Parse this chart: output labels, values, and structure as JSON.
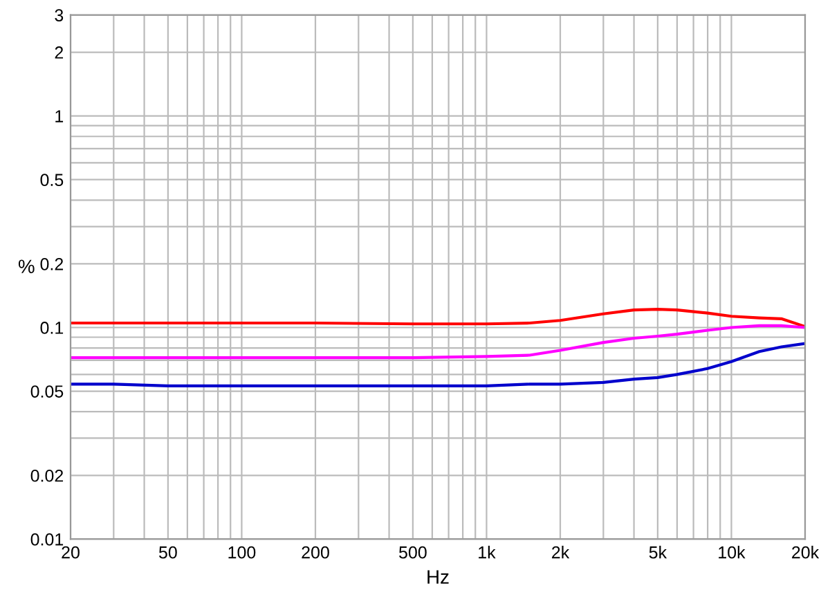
{
  "chart_data": {
    "type": "line",
    "xlabel": "Hz",
    "ylabel": "%",
    "log": "xy",
    "grid": true,
    "marker": "none",
    "line_style": "solid",
    "xlim": [
      20,
      20000
    ],
    "ylim": [
      0.01,
      3
    ],
    "xticks": [
      20,
      {
        "value": 30,
        "label": null
      },
      {
        "value": 40,
        "label": null
      },
      50,
      {
        "value": 60,
        "label": null
      },
      {
        "value": 70,
        "label": null
      },
      {
        "value": 80,
        "label": null
      },
      {
        "value": 90,
        "label": null
      },
      100,
      200,
      {
        "value": 300,
        "label": null
      },
      {
        "value": 400,
        "label": null
      },
      500,
      {
        "value": 600,
        "label": null
      },
      {
        "value": 700,
        "label": null
      },
      {
        "value": 800,
        "label": null
      },
      {
        "value": 900,
        "label": null
      },
      {
        "value": 1000,
        "label": "1k"
      },
      {
        "value": 2000,
        "label": "2k"
      },
      {
        "value": 3000,
        "label": null
      },
      {
        "value": 4000,
        "label": null
      },
      {
        "value": 5000,
        "label": "5k"
      },
      {
        "value": 6000,
        "label": null
      },
      {
        "value": 7000,
        "label": null
      },
      {
        "value": 8000,
        "label": null
      },
      {
        "value": 9000,
        "label": null
      },
      {
        "value": 10000,
        "label": "10k"
      },
      {
        "value": 20000,
        "label": "20k"
      }
    ],
    "yticks": [
      0.01,
      0.02,
      {
        "value": 0.03,
        "label": null
      },
      {
        "value": 0.04,
        "label": null
      },
      0.05,
      {
        "value": 0.06,
        "label": null
      },
      {
        "value": 0.07,
        "label": null
      },
      {
        "value": 0.08,
        "label": null
      },
      {
        "value": 0.09,
        "label": null
      },
      0.1,
      0.2,
      {
        "value": 0.3,
        "label": null
      },
      {
        "value": 0.4,
        "label": null
      },
      0.5,
      {
        "value": 0.6,
        "label": null
      },
      {
        "value": 0.7,
        "label": null
      },
      {
        "value": 0.8,
        "label": null
      },
      {
        "value": 0.9,
        "label": null
      },
      1,
      2,
      3
    ],
    "x": [
      20,
      30,
      50,
      100,
      200,
      500,
      1000,
      1500,
      2000,
      3000,
      4000,
      5000,
      6000,
      8000,
      10000,
      13000,
      16000,
      20000
    ],
    "series": [
      {
        "color": "#ff0000",
        "values": [
          0.105,
          0.105,
          0.105,
          0.105,
          0.105,
          0.104,
          0.104,
          0.105,
          0.108,
          0.116,
          0.121,
          0.122,
          0.121,
          0.117,
          0.113,
          0.111,
          0.11,
          0.101
        ]
      },
      {
        "color": "#ff00ff",
        "values": [
          0.072,
          0.072,
          0.072,
          0.072,
          0.072,
          0.072,
          0.073,
          0.074,
          0.078,
          0.085,
          0.089,
          0.091,
          0.093,
          0.097,
          0.1,
          0.102,
          0.102,
          0.1
        ]
      },
      {
        "color": "#0000cc",
        "values": [
          0.054,
          0.054,
          0.053,
          0.053,
          0.053,
          0.053,
          0.053,
          0.054,
          0.054,
          0.055,
          0.057,
          0.058,
          0.06,
          0.064,
          0.069,
          0.077,
          0.081,
          0.084
        ]
      }
    ]
  }
}
